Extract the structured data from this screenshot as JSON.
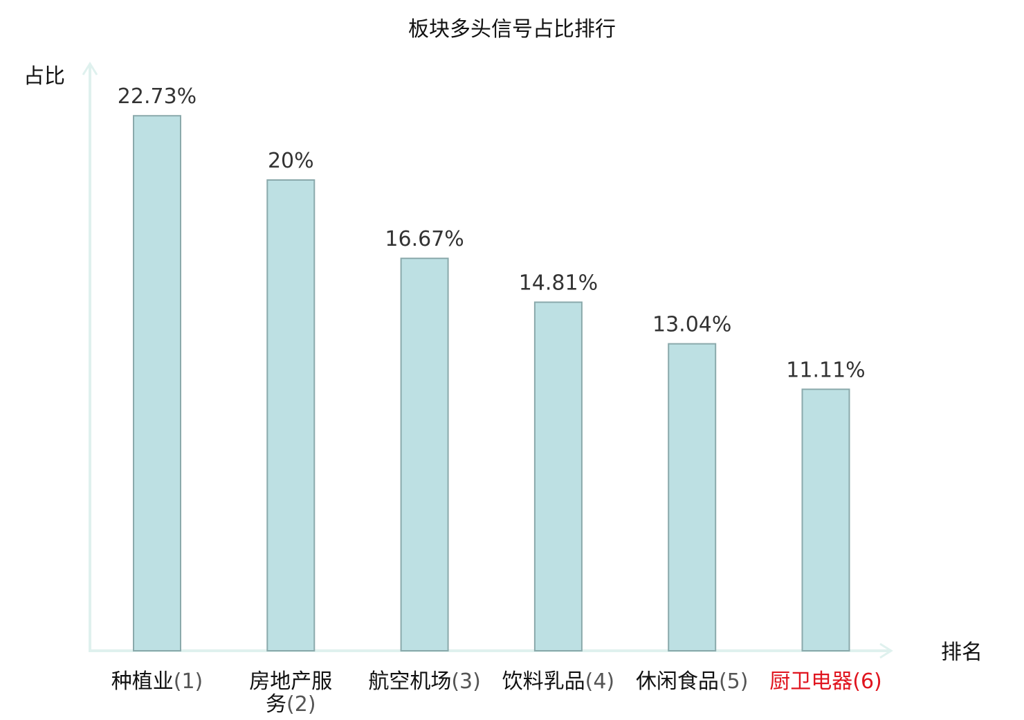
{
  "chart_data": {
    "type": "bar",
    "title": "板块多头信号占比排行",
    "ylabel": "占比",
    "xlabel": "排名",
    "categories": [
      "种植业",
      "房地产服务",
      "航空机场",
      "饮料乳品",
      "休闲食品",
      "厨卫电器"
    ],
    "category_lines": [
      [
        "种植业(1)"
      ],
      [
        "房地产服",
        "务(2)"
      ],
      [
        "航空机场(3)"
      ],
      [
        "饮料乳品(4)"
      ],
      [
        "休闲食品(5)"
      ],
      [
        "厨卫电器(6)"
      ]
    ],
    "ranks": [
      1,
      2,
      3,
      4,
      5,
      6
    ],
    "values": [
      22.73,
      20,
      16.67,
      14.81,
      13.04,
      11.11
    ],
    "value_labels": [
      "22.73%",
      "20%",
      "16.67%",
      "14.81%",
      "13.04%",
      "11.11%"
    ],
    "highlight_index": 5,
    "ylim": [
      0,
      25
    ],
    "grid": false,
    "colors": {
      "bar_fill": "#bde0e3",
      "bar_stroke": "#8aa9ab",
      "axis": "#dff1ee",
      "text": "#111111",
      "value_text": "#333333",
      "rank_text": "#555555",
      "highlight": "#e0141e"
    }
  }
}
